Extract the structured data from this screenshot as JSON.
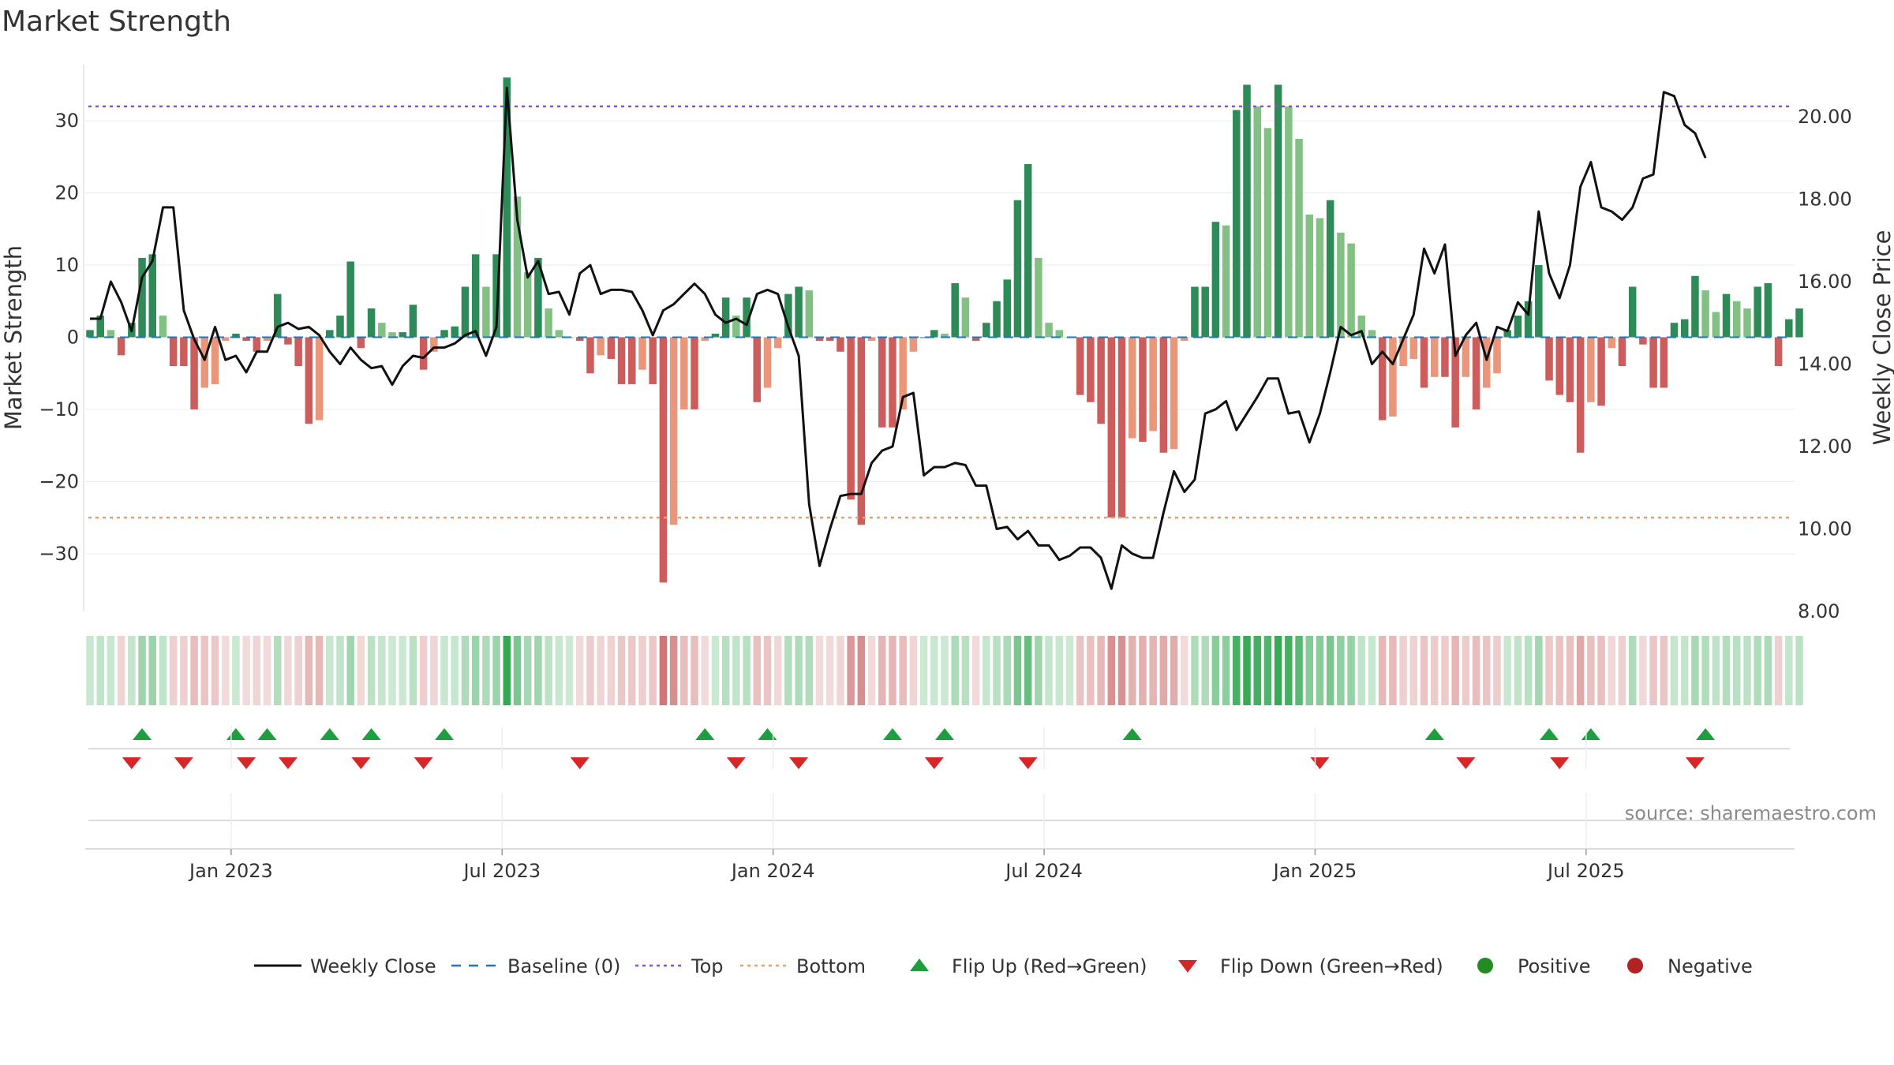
{
  "chart_data": {
    "type": "bar+line",
    "title": "Market Strength",
    "ylabel": "Market Strength",
    "y2label": "Weekly Close Price",
    "ylim": [
      -38,
      38
    ],
    "y2lim": [
      8,
      21.3
    ],
    "yticks": [
      30,
      20,
      10,
      0,
      -10,
      -20,
      -30
    ],
    "ytick_labels": [
      "30",
      "20",
      "10",
      "0",
      "−10",
      "−20",
      "−30"
    ],
    "y2ticks": [
      20,
      18,
      16,
      14,
      12,
      10,
      8
    ],
    "y2tick_labels": [
      "20.00",
      "18.00",
      "16.00",
      "14.00",
      "12.00",
      "10.00",
      "8.00"
    ],
    "x_tick_labels": [
      "Jan 2023",
      "Jul 2023",
      "Jan 2024",
      "Jul 2024",
      "Jan 2025",
      "Jul 2025"
    ],
    "x_tick_week_index": [
      14,
      40,
      66,
      92,
      118,
      144
    ],
    "top_line": 32,
    "bottom_line": -25,
    "colors": {
      "strong_green": "#2e8b57",
      "light_green": "#82c084",
      "strong_red": "#cd5c5c",
      "light_red": "#e9967a",
      "price_line": "#111111",
      "top": "#8a4fd1",
      "bottom": "#e8a060",
      "baseline": "#1f77b4",
      "flip_up": "#1e9e3e",
      "flip_down": "#d62728",
      "positive": "#228b22",
      "negative": "#b22222"
    },
    "series": [
      {
        "name": "Market Strength",
        "values": [
          1,
          3,
          1,
          -2.5,
          2,
          11,
          11.5,
          3,
          -4,
          -4,
          -10,
          -7,
          -6.5,
          -0.5,
          0.5,
          -0.5,
          -2,
          -0.5,
          6,
          -1,
          -4,
          -12,
          -11.5,
          1,
          3,
          10.5,
          -1.5,
          4,
          2,
          0.7,
          0.7,
          4.5,
          -4.5,
          -2,
          1,
          1.5,
          7,
          11.5,
          7,
          11.5,
          36,
          19.5,
          9,
          11,
          4,
          1,
          0,
          -0.5,
          -5,
          -2.5,
          -3,
          -6.5,
          -6.5,
          -4.5,
          -6.5,
          -34,
          -26,
          -10,
          -10,
          -0.5,
          0.5,
          5.5,
          3,
          5.5,
          -9,
          -7,
          -1.5,
          6,
          7,
          6.5,
          -0.5,
          -0.5,
          -2,
          -22.5,
          -26,
          -0.5,
          -12.5,
          -12.5,
          -10,
          -2,
          0,
          1,
          0.5,
          7.5,
          5.5,
          -0.5,
          2,
          5,
          8,
          19,
          24,
          11,
          2,
          1,
          0,
          -8,
          -9,
          -12,
          -25,
          -25,
          -14,
          -14.5,
          -13,
          -16,
          -15.5,
          -0.5,
          7,
          7,
          16,
          15.5,
          31.5,
          35,
          32,
          29,
          35,
          32,
          27.5,
          17,
          16.5,
          19,
          14.5,
          13,
          3,
          1,
          -11.5,
          -11,
          -4,
          -3,
          -7,
          -5.5,
          -5.5,
          -12.5,
          -5.5,
          -10,
          -7,
          -5,
          1,
          3,
          5,
          10,
          -6,
          -8,
          -9,
          -16,
          -9,
          -9.5,
          -1.5,
          -4,
          7,
          -1,
          -7,
          -7,
          2,
          2.5,
          8.5,
          6.5,
          3.5,
          6,
          5,
          4,
          7,
          7.5,
          -4,
          2.5,
          4
        ]
      },
      {
        "name": "Weekly Close",
        "values": [
          15.1,
          15.1,
          16,
          15.5,
          14.8,
          16.1,
          16.5,
          17.8,
          17.8,
          15.3,
          14.6,
          14.1,
          14.9,
          14.1,
          14.2,
          13.8,
          14.3,
          14.3,
          14.9,
          15.0,
          14.85,
          14.9,
          14.7,
          14.3,
          14.0,
          14.4,
          14.1,
          13.9,
          13.95,
          13.5,
          13.95,
          14.2,
          14.15,
          14.4,
          14.4,
          14.5,
          14.7,
          14.8,
          14.2,
          14.9,
          20.7,
          17.5,
          16.1,
          16.5,
          15.7,
          15.75,
          15.2,
          16.2,
          16.4,
          15.7,
          15.8,
          15.8,
          15.75,
          15.3,
          14.7,
          15.3,
          15.45,
          15.7,
          15.95,
          15.7,
          15.2,
          15.0,
          15.1,
          14.95,
          15.7,
          15.8,
          15.7,
          14.9,
          14.2,
          10.6,
          9.1,
          10.0,
          10.8,
          10.85,
          10.85,
          11.6,
          11.9,
          12.0,
          13.2,
          13.3,
          11.3,
          11.5,
          11.5,
          11.6,
          11.55,
          11.05,
          11.05,
          10.0,
          10.05,
          9.75,
          9.95,
          9.6,
          9.6,
          9.25,
          9.35,
          9.55,
          9.55,
          9.3,
          8.55,
          9.6,
          9.4,
          9.3,
          9.3,
          10.4,
          11.4,
          10.9,
          11.2,
          12.8,
          12.9,
          13.1,
          12.4,
          12.8,
          13.2,
          13.65,
          13.65,
          12.8,
          12.85,
          12.1,
          12.8,
          13.8,
          14.9,
          14.7,
          14.8,
          14.0,
          14.3,
          14.0,
          14.6,
          15.2,
          16.8,
          16.2,
          16.9,
          14.2,
          14.7,
          15.0,
          14.1,
          14.9,
          14.8,
          15.5,
          15.2,
          17.7,
          16.2,
          15.6,
          16.4,
          18.3,
          18.9,
          17.8,
          17.7,
          17.5,
          17.8,
          18.5,
          18.6,
          20.6,
          20.5,
          19.8,
          19.6,
          19.0
        ]
      }
    ],
    "flip_up_week_index": [
      5,
      14,
      17,
      23,
      27,
      34,
      59,
      65,
      77,
      82,
      100,
      129,
      140,
      144,
      155
    ],
    "flip_down_week_index": [
      4,
      9,
      15,
      19,
      26,
      32,
      47,
      62,
      68,
      81,
      90,
      118,
      132,
      141,
      154
    ],
    "legend": [
      {
        "label": "Weekly Close",
        "symbol": "line"
      },
      {
        "label": "Baseline (0)",
        "symbol": "dash"
      },
      {
        "label": "Top",
        "symbol": "dot-purple"
      },
      {
        "label": "Bottom",
        "symbol": "dot-orange"
      },
      {
        "label": "Flip Up (Red→Green)",
        "symbol": "tri-up"
      },
      {
        "label": "Flip Down (Green→Red)",
        "symbol": "tri-down"
      },
      {
        "label": "Positive",
        "symbol": "dot-green"
      },
      {
        "label": "Negative",
        "symbol": "dot-red"
      }
    ],
    "source": "source: sharemaestro.com"
  }
}
